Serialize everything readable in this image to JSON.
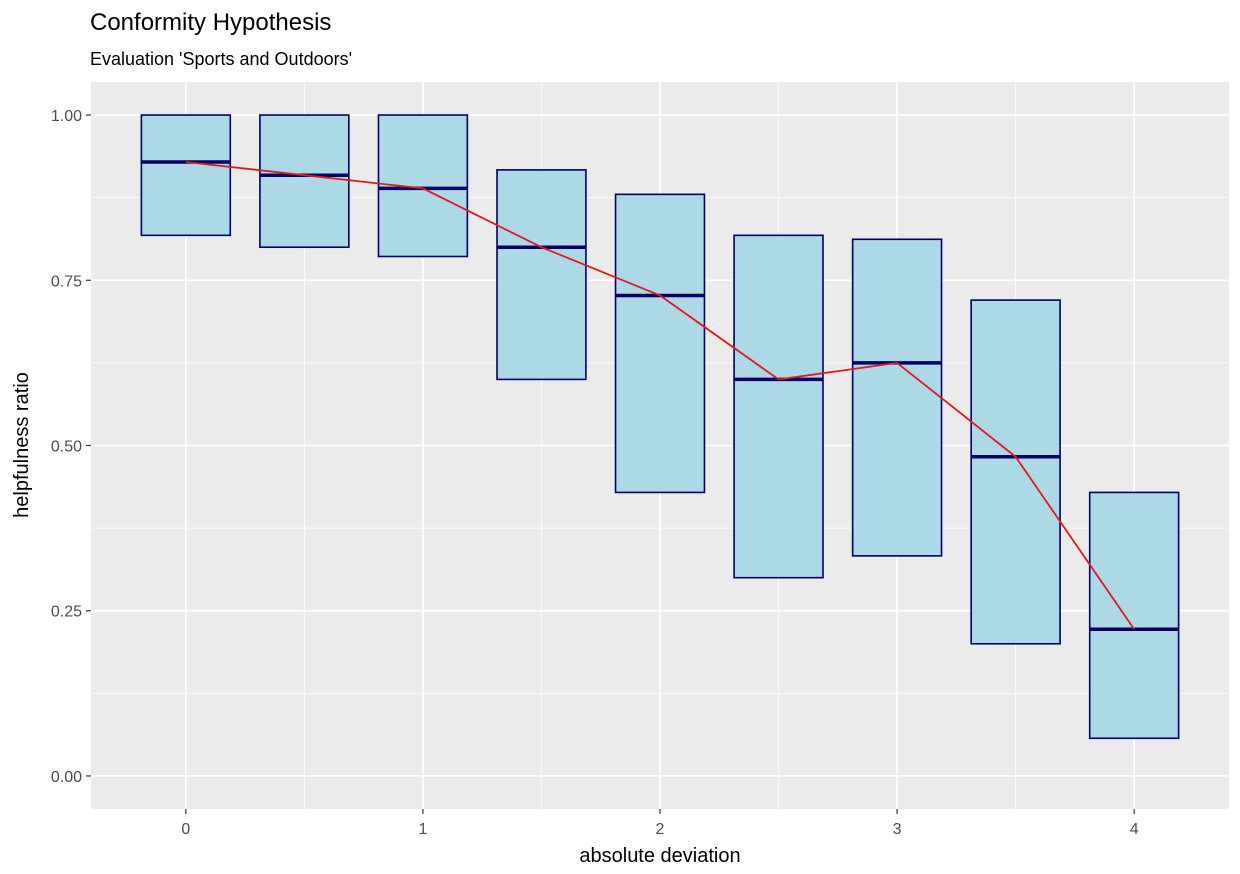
{
  "chart_data": {
    "type": "box",
    "title": "Conformity Hypothesis",
    "subtitle": "Evaluation 'Sports and Outdoors'",
    "xlabel": "absolute deviation",
    "ylabel": "helpfulness ratio",
    "xlim": [
      -0.4,
      4.4
    ],
    "ylim": [
      -0.05,
      1.05
    ],
    "x_ticks": [
      0,
      1,
      2,
      3,
      4
    ],
    "x_tick_labels": [
      "0",
      "1",
      "2",
      "3",
      "4"
    ],
    "y_ticks": [
      0,
      0.25,
      0.5,
      0.75,
      1.0
    ],
    "y_tick_labels": [
      "0.00",
      "0.25",
      "0.50",
      "0.75",
      "1.00"
    ],
    "grid": true,
    "boxes": [
      {
        "x": 0.0,
        "q1": 0.818,
        "median": 0.929,
        "q3": 1.0
      },
      {
        "x": 0.5,
        "q1": 0.8,
        "median": 0.909,
        "q3": 1.0
      },
      {
        "x": 1.0,
        "q1": 0.786,
        "median": 0.889,
        "q3": 1.0
      },
      {
        "x": 1.5,
        "q1": 0.6,
        "median": 0.8,
        "q3": 0.917
      },
      {
        "x": 2.0,
        "q1": 0.429,
        "median": 0.727,
        "q3": 0.88
      },
      {
        "x": 2.5,
        "q1": 0.3,
        "median": 0.6,
        "q3": 0.818
      },
      {
        "x": 3.0,
        "q1": 0.333,
        "median": 0.625,
        "q3": 0.812
      },
      {
        "x": 3.5,
        "q1": 0.2,
        "median": 0.483,
        "q3": 0.72
      },
      {
        "x": 4.0,
        "q1": 0.057,
        "median": 0.222,
        "q3": 0.429
      }
    ],
    "median_line": {
      "x": [
        0,
        0.5,
        1,
        1.5,
        2,
        2.5,
        3,
        3.5,
        4
      ],
      "y": [
        0.929,
        0.909,
        0.889,
        0.8,
        0.727,
        0.6,
        0.625,
        0.483,
        0.222
      ]
    },
    "colors": {
      "panel_background": "#ebebeb",
      "grid": "#ffffff",
      "box_fill": "#add8e6",
      "box_border": "#000066",
      "median": "#000066",
      "trend_line": "#e31a1c"
    }
  }
}
